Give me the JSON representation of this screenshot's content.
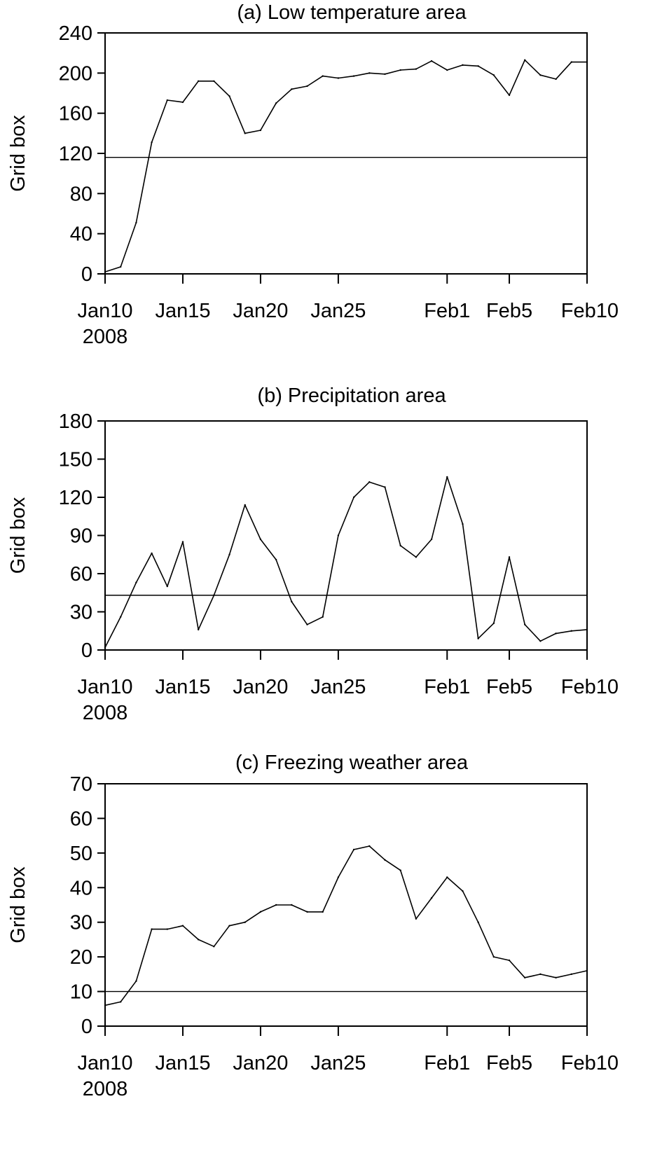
{
  "chart_data": [
    {
      "type": "line",
      "title": "(a) Low temperature area",
      "ylabel": "Grid box",
      "xlabel": "",
      "ylim": [
        0,
        240
      ],
      "yticks": [
        "0",
        "40",
        "80",
        "120",
        "160",
        "200",
        "240"
      ],
      "xlim": [
        "2008-01-10",
        "2008-02-10"
      ],
      "xticks": [
        {
          "date": "2008-01-10",
          "label": "Jan10",
          "sublabel": "2008"
        },
        {
          "date": "2008-01-15",
          "label": "Jan15",
          "sublabel": ""
        },
        {
          "date": "2008-01-20",
          "label": "Jan20",
          "sublabel": ""
        },
        {
          "date": "2008-01-25",
          "label": "Jan25",
          "sublabel": ""
        },
        {
          "date": "2008-02-01",
          "label": "Feb1",
          "sublabel": ""
        },
        {
          "date": "2008-02-05",
          "label": "Feb5",
          "sublabel": ""
        },
        {
          "date": "2008-02-10",
          "label": "Feb10",
          "sublabel": ""
        }
      ],
      "x": [
        "2008-01-10",
        "2008-01-11",
        "2008-01-12",
        "2008-01-13",
        "2008-01-14",
        "2008-01-15",
        "2008-01-16",
        "2008-01-17",
        "2008-01-18",
        "2008-01-19",
        "2008-01-20",
        "2008-01-21",
        "2008-01-22",
        "2008-01-23",
        "2008-01-24",
        "2008-01-25",
        "2008-01-26",
        "2008-01-27",
        "2008-01-28",
        "2008-01-29",
        "2008-01-30",
        "2008-01-31",
        "2008-02-01",
        "2008-02-02",
        "2008-02-03",
        "2008-02-04",
        "2008-02-05",
        "2008-02-06",
        "2008-02-07",
        "2008-02-08",
        "2008-02-09",
        "2008-02-10"
      ],
      "values": [
        2,
        7,
        51,
        131,
        173,
        171,
        192,
        192,
        177,
        140,
        143,
        170,
        184,
        187,
        197,
        195,
        197,
        200,
        199,
        203,
        204,
        212,
        203,
        208,
        207,
        198,
        178,
        213,
        198,
        194,
        211,
        211
      ],
      "reference_line": 116
    },
    {
      "type": "line",
      "title": "(b) Precipitation area",
      "ylabel": "Grid box",
      "xlabel": "",
      "ylim": [
        0,
        180
      ],
      "yticks": [
        "0",
        "30",
        "60",
        "90",
        "120",
        "150",
        "180"
      ],
      "xlim": [
        "2008-01-10",
        "2008-02-10"
      ],
      "xticks": [
        {
          "date": "2008-01-10",
          "label": "Jan10",
          "sublabel": "2008"
        },
        {
          "date": "2008-01-15",
          "label": "Jan15",
          "sublabel": ""
        },
        {
          "date": "2008-01-20",
          "label": "Jan20",
          "sublabel": ""
        },
        {
          "date": "2008-01-25",
          "label": "Jan25",
          "sublabel": ""
        },
        {
          "date": "2008-02-01",
          "label": "Feb1",
          "sublabel": ""
        },
        {
          "date": "2008-02-05",
          "label": "Feb5",
          "sublabel": ""
        },
        {
          "date": "2008-02-10",
          "label": "Feb10",
          "sublabel": ""
        }
      ],
      "x": [
        "2008-01-10",
        "2008-01-11",
        "2008-01-12",
        "2008-01-13",
        "2008-01-14",
        "2008-01-15",
        "2008-01-16",
        "2008-01-17",
        "2008-01-18",
        "2008-01-19",
        "2008-01-20",
        "2008-01-21",
        "2008-01-22",
        "2008-01-23",
        "2008-01-24",
        "2008-01-25",
        "2008-01-26",
        "2008-01-27",
        "2008-01-28",
        "2008-01-29",
        "2008-01-30",
        "2008-01-31",
        "2008-02-01",
        "2008-02-02",
        "2008-02-03",
        "2008-02-04",
        "2008-02-05",
        "2008-02-06",
        "2008-02-07",
        "2008-02-08",
        "2008-02-09",
        "2008-02-10"
      ],
      "values": [
        2,
        26,
        53,
        76,
        50,
        85,
        16,
        43,
        75,
        114,
        87,
        71,
        38,
        20,
        26,
        90,
        120,
        132,
        128,
        82,
        73,
        87,
        136,
        99,
        9,
        21,
        73,
        20,
        7,
        13,
        15,
        16
      ],
      "reference_line": 43
    },
    {
      "type": "line",
      "title": "(c) Freezing weather area",
      "ylabel": "Grid box",
      "xlabel": "",
      "ylim": [
        0,
        70
      ],
      "yticks": [
        "0",
        "10",
        "20",
        "30",
        "40",
        "50",
        "60",
        "70"
      ],
      "xlim": [
        "2008-01-10",
        "2008-02-10"
      ],
      "xticks": [
        {
          "date": "2008-01-10",
          "label": "Jan10",
          "sublabel": "2008"
        },
        {
          "date": "2008-01-15",
          "label": "Jan15",
          "sublabel": ""
        },
        {
          "date": "2008-01-20",
          "label": "Jan20",
          "sublabel": ""
        },
        {
          "date": "2008-01-25",
          "label": "Jan25",
          "sublabel": ""
        },
        {
          "date": "2008-02-01",
          "label": "Feb1",
          "sublabel": ""
        },
        {
          "date": "2008-02-05",
          "label": "Feb5",
          "sublabel": ""
        },
        {
          "date": "2008-02-10",
          "label": "Feb10",
          "sublabel": ""
        }
      ],
      "x": [
        "2008-01-10",
        "2008-01-11",
        "2008-01-12",
        "2008-01-13",
        "2008-01-14",
        "2008-01-15",
        "2008-01-16",
        "2008-01-17",
        "2008-01-18",
        "2008-01-19",
        "2008-01-20",
        "2008-01-21",
        "2008-01-22",
        "2008-01-23",
        "2008-01-24",
        "2008-01-25",
        "2008-01-26",
        "2008-01-27",
        "2008-01-28",
        "2008-01-29",
        "2008-01-30",
        "2008-01-31",
        "2008-02-01",
        "2008-02-02",
        "2008-02-03",
        "2008-02-04",
        "2008-02-05",
        "2008-02-06",
        "2008-02-07",
        "2008-02-08",
        "2008-02-09",
        "2008-02-10"
      ],
      "values": [
        6,
        7,
        13,
        28,
        28,
        29,
        25,
        23,
        29,
        30,
        33,
        35,
        35,
        33,
        33,
        43,
        51,
        52,
        48,
        45,
        31,
        37,
        43,
        39,
        30,
        20,
        19,
        14,
        15,
        14,
        15,
        16
      ],
      "reference_line": 10
    }
  ]
}
